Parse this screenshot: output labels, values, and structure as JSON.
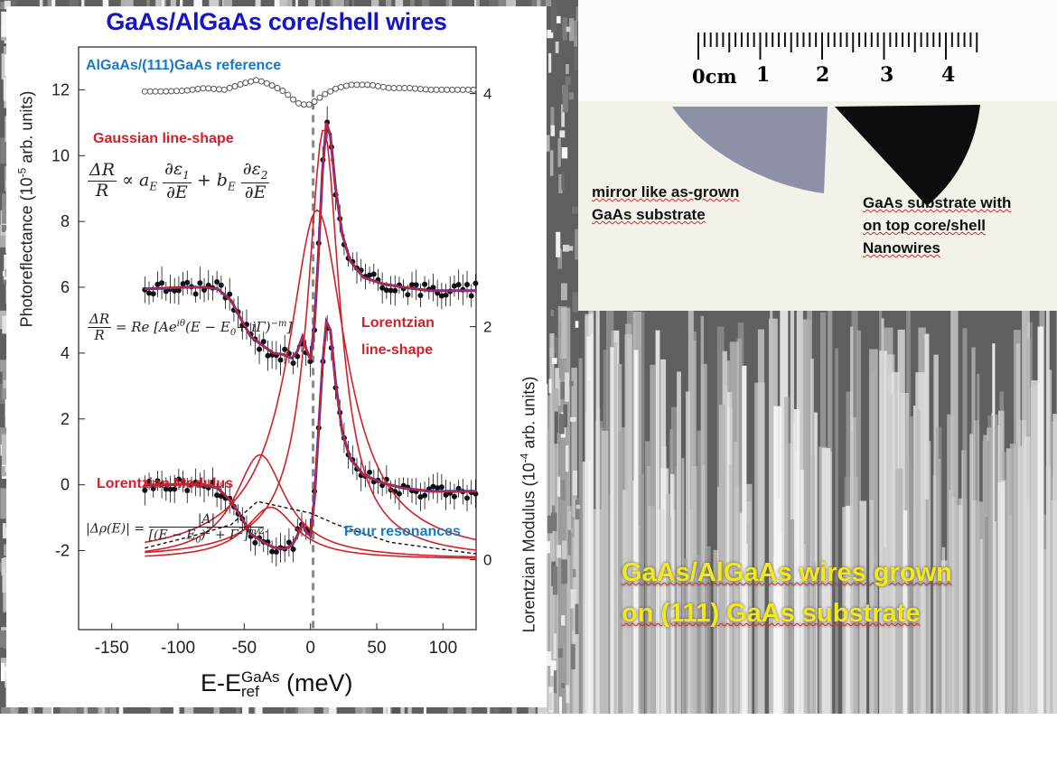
{
  "chart_title": "GaAs/AlGaAs core/shell wires",
  "annotations": {
    "reference": "AlGaAs/(111)GaAs reference",
    "gaussian": "Gaussian line-shape",
    "lorentzian_1": "Lorentzian",
    "lorentzian_2": "line-shape",
    "modulus": "Lorentzian Modulus",
    "four_resonances": "Four resonances"
  },
  "equations": {
    "gaussian_lhs_num": "ΔR",
    "gaussian_lhs_den": "R",
    "gaussian_mid": "∝ a",
    "gaussian_sub_a": "E",
    "gaussian_t1_num": "∂ε",
    "gaussian_t1_num_sub": "1",
    "gaussian_t_den": "∂E",
    "gaussian_plus": "+ b",
    "gaussian_sub_b": "E",
    "gaussian_t2_num": "∂ε",
    "gaussian_t2_num_sub": "2",
    "lorentz_lhs_num": "ΔR",
    "lorentz_lhs_den": "R",
    "lorentz_rhs": "= Re [Ae",
    "lorentz_exp": "iθ",
    "lorentz_rhs2": "(E − E",
    "lorentz_sub0": "0",
    "lorentz_rhs3": "+ iΓ)",
    "lorentz_exp2": "−m",
    "lorentz_close": "]",
    "modulus_lhs": "|Δρ(E)| =",
    "modulus_num": "|A|",
    "modulus_den": "[(E − E",
    "modulus_den_sub": "0",
    "modulus_den2": ")",
    "modulus_den_sup": "2",
    "modulus_den3": "+ Γ",
    "modulus_den_sup2": "2",
    "modulus_den4": "]",
    "modulus_den_exp": "m/2",
    "modulus_dot": "."
  },
  "axes": {
    "ylabel_left": "Photoreflectance (10",
    "ylabel_left_sup": "-5",
    "ylabel_left_end": " arb. units)",
    "ylabel_right": "Lorentzian Modulus (10",
    "ylabel_right_sup": "-4",
    "ylabel_right_end": " arb. units)",
    "xlabel_main": "E-E",
    "xlabel_sup": "GaAs",
    "xlabel_sub": "ref",
    "xlabel_end": " (meV)"
  },
  "photo": {
    "ruler_labels": [
      "0cm",
      "1",
      "2",
      "3",
      "4"
    ],
    "caption_left_1": "mirror like as-grown",
    "caption_left_2": "GaAs substrate",
    "caption_right_1": "GaAs substrate with",
    "caption_right_2": "on top core/shell",
    "caption_right_3": "Nanowires"
  },
  "sem_caption_1": "GaAs/AlGaAs wires grown",
  "sem_caption_2": "on (111) GaAs substrate",
  "colors": {
    "title": "#1515c8",
    "fit_red": "#d2202a",
    "fit_blue": "#2233cc",
    "reference_blue": "#1a78c2",
    "data_black": "#111111",
    "sem_caption": "#f2e81a"
  },
  "chart_data": {
    "type": "scatter",
    "title": "GaAs/AlGaAs core/shell wires",
    "xlabel": "E-E_ref^GaAs (meV)",
    "ylabel": "Photoreflectance (10^-5 arb. units)",
    "y2label": "Lorentzian Modulus (10^-4 arb. units)",
    "xlim": [
      -175,
      125
    ],
    "ylim": [
      -4.4,
      13.3
    ],
    "y2lim": [
      -0.6,
      4.4
    ],
    "x_ticks": [
      -150,
      -100,
      -50,
      0,
      50,
      100
    ],
    "y_ticks": [
      -2,
      0,
      2,
      4,
      6,
      8,
      10,
      12
    ],
    "y2_ticks": [
      0,
      2,
      4
    ],
    "resonance_marker_x": 2,
    "series": [
      {
        "name": "AlGaAs/(111)GaAs reference",
        "style": "open-circles",
        "axis": "left",
        "points": [
          [
            -125,
            11.95
          ],
          [
            -110,
            11.95
          ],
          [
            -95,
            11.97
          ],
          [
            -80,
            12.05
          ],
          [
            -65,
            12.0
          ],
          [
            -50,
            12.2
          ],
          [
            -40,
            12.3
          ],
          [
            -30,
            12.15
          ],
          [
            -20,
            11.95
          ],
          [
            -10,
            11.6
          ],
          [
            -5,
            11.55
          ],
          [
            0,
            11.55
          ],
          [
            10,
            11.85
          ],
          [
            20,
            12.05
          ],
          [
            30,
            12.15
          ],
          [
            45,
            12.15
          ],
          [
            60,
            12.05
          ],
          [
            75,
            12.05
          ],
          [
            90,
            12.0
          ],
          [
            110,
            12.0
          ],
          [
            125,
            12.0
          ]
        ]
      },
      {
        "name": "Gaussian line-shape",
        "style": "data+fit",
        "axis": "left",
        "points": [
          [
            -125,
            5.95
          ],
          [
            -110,
            5.97
          ],
          [
            -95,
            6.0
          ],
          [
            -80,
            6.0
          ],
          [
            -70,
            5.95
          ],
          [
            -60,
            5.6
          ],
          [
            -52,
            5.0
          ],
          [
            -45,
            4.5
          ],
          [
            -35,
            4.2
          ],
          [
            -28,
            4.0
          ],
          [
            -20,
            3.95
          ],
          [
            -14,
            3.85
          ],
          [
            -10,
            4.05
          ],
          [
            -6,
            4.5
          ],
          [
            -3,
            4.1
          ],
          [
            0,
            3.8
          ],
          [
            3,
            4.9
          ],
          [
            6,
            7.0
          ],
          [
            9,
            9.5
          ],
          [
            12,
            11.0
          ],
          [
            15,
            10.6
          ],
          [
            19,
            9.0
          ],
          [
            24,
            7.6
          ],
          [
            30,
            6.8
          ],
          [
            40,
            6.3
          ],
          [
            55,
            6.1
          ],
          [
            70,
            6.0
          ],
          [
            90,
            5.9
          ],
          [
            125,
            5.9
          ]
        ]
      },
      {
        "name": "Lorentzian line-shape",
        "style": "data+fit",
        "axis": "left",
        "points": [
          [
            -125,
            0.0
          ],
          [
            -110,
            0.0
          ],
          [
            -95,
            0.02
          ],
          [
            -80,
            0.0
          ],
          [
            -70,
            -0.1
          ],
          [
            -60,
            -0.5
          ],
          [
            -52,
            -1.0
          ],
          [
            -45,
            -1.5
          ],
          [
            -35,
            -1.75
          ],
          [
            -28,
            -1.9
          ],
          [
            -20,
            -1.95
          ],
          [
            -14,
            -1.85
          ],
          [
            -10,
            -1.55
          ],
          [
            -6,
            -1.2
          ],
          [
            -3,
            -1.45
          ],
          [
            0,
            -1.55
          ],
          [
            3,
            -0.4
          ],
          [
            6,
            1.6
          ],
          [
            9,
            3.6
          ],
          [
            12,
            4.95
          ],
          [
            15,
            4.7
          ],
          [
            19,
            3.1
          ],
          [
            24,
            1.6
          ],
          [
            30,
            0.8
          ],
          [
            40,
            0.3
          ],
          [
            55,
            0.05
          ],
          [
            70,
            -0.1
          ],
          [
            90,
            -0.2
          ],
          [
            125,
            -0.2
          ]
        ]
      },
      {
        "name": "Lorentzian Modulus",
        "style": "lines",
        "axis": "right",
        "peaks": [
          {
            "center": -38,
            "height": 0.9
          },
          {
            "center": -30,
            "height": 0.45
          },
          {
            "center": 5,
            "height": 3.0
          },
          {
            "center": 10,
            "height": 3.7
          }
        ],
        "total": [
          [
            -125,
            0.1
          ],
          [
            -90,
            0.2
          ],
          [
            -60,
            0.3
          ],
          [
            -40,
            0.5
          ],
          [
            -20,
            0.45
          ],
          [
            0,
            0.4
          ],
          [
            20,
            0.3
          ],
          [
            60,
            0.15
          ],
          [
            125,
            0.05
          ]
        ]
      }
    ]
  }
}
